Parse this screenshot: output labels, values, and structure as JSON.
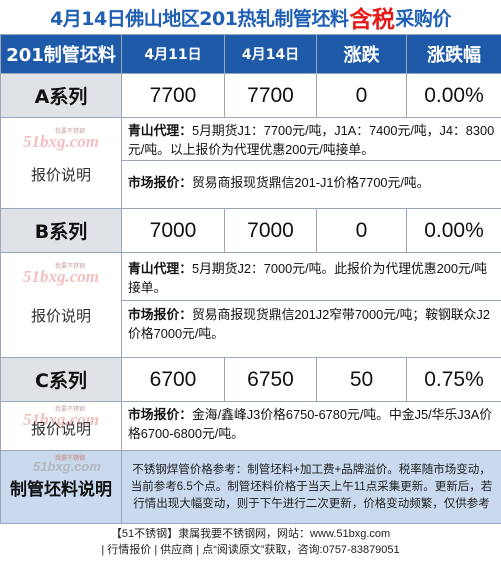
{
  "title": {
    "prefix": "4月14日佛山地区201热轧制管坯料",
    "tax": "含税",
    "suffix": "采购价"
  },
  "header": {
    "col0": "201制管坯料",
    "col1": "4月11日",
    "col2": "4月14日",
    "col3": "涨跌",
    "col4": "涨跌幅"
  },
  "rows": [
    {
      "name": "A系列",
      "d1": "7700",
      "d2": "7700",
      "chg": "0",
      "pct": "0.00%",
      "desc_label": "报价说明",
      "p1_lead": "青山代理：",
      "p1_text": "5月期货J1：7700元/吨，J1A：7400元/吨，J4：8300元/吨。以上报价为代理优惠200元/吨接单。",
      "p2_lead": "市场报价：",
      "p2_text": "贸易商报现货鼎信201-J1价格7700元/吨。"
    },
    {
      "name": "B系列",
      "d1": "7000",
      "d2": "7000",
      "chg": "0",
      "pct": "0.00%",
      "desc_label": "报价说明",
      "p1_lead": "青山代理：",
      "p1_text": "5月期货J2：7000元/吨。此报价为代理优惠200元/吨接单。",
      "p2_lead": "市场报价：",
      "p2_text": "贸易商报现货鼎信201J2窄带7000元/吨；鞍钢联众J2价格7000元/吨。"
    },
    {
      "name": "C系列",
      "d1": "6700",
      "d2": "6750",
      "chg": "50",
      "pct": "0.75%",
      "desc_label": "报价说明",
      "p1_lead": "市场报价：",
      "p1_text": "金海/鑫峰J3价格6750-6780元/吨。中金J5/华乐J3A价格6700-6800元/吨。"
    }
  ],
  "bottom": {
    "label": "制管坯料说明",
    "text": "不锈钢焊管价格参考：制管坯料+加工费+品牌溢价。税率随市场变动，当前参考6.5个点。制管坯料价格于当天上午11点采集更新。更新后，若行情出现大幅变动，则于下午进行二次更新，价格变动频繁，仅供参考"
  },
  "footer": {
    "line1": "【51不锈钢】隶属我要不锈钢网，网站：www.51bxg.com",
    "line2": "| 行情报价 | 供应商 | 点“阅读原文”获取，咨询:0757-83879051"
  },
  "watermark": {
    "text": "51bxg.com",
    "tag": "我要不锈钢"
  },
  "colors": {
    "header_bg": "#1e5aa8",
    "title": "#1f5fb4",
    "tax": "#e31b1b",
    "name_bg": "#dfe3e8",
    "bottom_bg": "#c9d9ee"
  }
}
